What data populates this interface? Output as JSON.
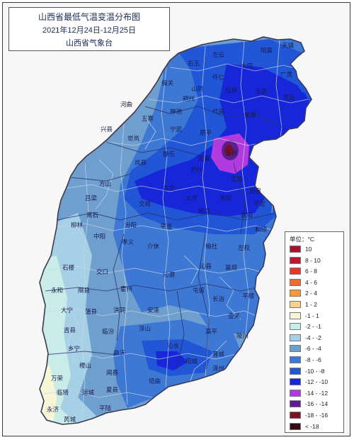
{
  "title": {
    "line1": "山西省最低气温变温分布图",
    "line2": "2021年12月24日-12月25日",
    "line3": "山西省气象台"
  },
  "legend": {
    "unit": "单位：°C",
    "items": [
      {
        "label": "10",
        "color": "#a3142d"
      },
      {
        "label": "8 - 10",
        "color": "#c4152d"
      },
      {
        "label": "6 - 8",
        "color": "#e2392c"
      },
      {
        "label": "4 - 6",
        "color": "#f26a2e"
      },
      {
        "label": "2 - 4",
        "color": "#f59a3a"
      },
      {
        "label": "1 - 2",
        "color": "#f7d48a"
      },
      {
        "label": "-1 - 1",
        "color": "#f6f6d6"
      },
      {
        "label": "-2 - -1",
        "color": "#c9ece8"
      },
      {
        "label": "-4 - -2",
        "color": "#a6d0e6"
      },
      {
        "label": "-6 - -4",
        "color": "#6f9fcf"
      },
      {
        "label": "-8 - -6",
        "color": "#3d78d4"
      },
      {
        "label": "-10 - -8",
        "color": "#2156d6"
      },
      {
        "label": "-12 - -10",
        "color": "#1726d8"
      },
      {
        "label": "-14 - -12",
        "color": "#b23be0"
      },
      {
        "label": "-16 - -14",
        "color": "#5a1f8c"
      },
      {
        "label": "-18 - -16",
        "color": "#7a1025"
      },
      {
        "label": "< -18",
        "color": "#3a0a12"
      }
    ]
  },
  "cities": {
    "tianzhen": "天镇",
    "pingyao": "平遥",
    "xinzhou": "忻州",
    "taiyuan": "太原",
    "yangquan": "阳泉",
    "linfen": "临汾",
    "yuncheng": "运城",
    "changzhi": "长治",
    "jincheng": "晋城",
    "lvliang": "吕梁",
    "shuozhou": "朔州",
    "datong": "大同",
    "yonghe": "永和",
    "daning": "大宁",
    "jixian": "吉县",
    "xiangning": "乡宁",
    "wanrong": "万荣",
    "linyi": "临猗",
    "yongji": "永济",
    "ruicheng": "芮城",
    "shilou": "石楼",
    "liulin": "柳林",
    "xingxian": "兴县",
    "hequ": "河曲",
    "lishi": "离石",
    "jiaocheng": "交城",
    "qinxian": "沁县",
    "pingshun": "平顺",
    "lingchuan": "陵川",
    "qinshui": "沁水",
    "yangcheng": "阳城",
    "yushe": "榆社",
    "zuoquan": "左权",
    "heshun": "和顺",
    "xiangyuan": "襄垣",
    "wutai": "五台",
    "lingqiu": "灵丘",
    "guangling": "广灵",
    "pianguan": "偏关",
    "shenchi": "神池",
    "ningwu": "宁武",
    "jingle": "静乐",
    "fenyang": "汾阳",
    "xiaoyi": "孝义",
    "jiexiu": "介休",
    "huozhou": "霍州",
    "hongtong": "洪洞",
    "puxian": "蒲县",
    "xixian": "隰县",
    "quwo": "曲沃",
    "jishan": "稷山",
    "wenxi": "闻喜",
    "xiaxian": "夏县",
    "pinglu": "平陆",
    "huanqu": "垣曲",
    "qinyuan": "沁源",
    "tunliu": "屯留",
    "huguan": "壶关",
    "gaoping": "高平",
    "zezhou": "泽州",
    "wuzhai": "五寨",
    "kelan": "岢岚",
    "lanxian": "岚县",
    "fangshan": "方山",
    "zhongyang": "中阳",
    "jiaokou": "交口",
    "fushan": "浮山",
    "anze": "安泽",
    "gujiao": "古交",
    "yuci": "榆次",
    "shouyang": "寿阳",
    "xiyang": "昔阳",
    "pingding": "平定",
    "yuxian": "盂县",
    "dingxiang": "定襄",
    "daixian": "代县",
    "fanshi": "繁峙",
    "hunyuan": "浑源",
    "yingxian": "应县",
    "huairen": "怀仁",
    "shanyin": "山阴",
    "youyu": "右玉",
    "zuoyun": "左云",
    "yanggao": "阳高",
    "yuanping": "原平"
  }
}
